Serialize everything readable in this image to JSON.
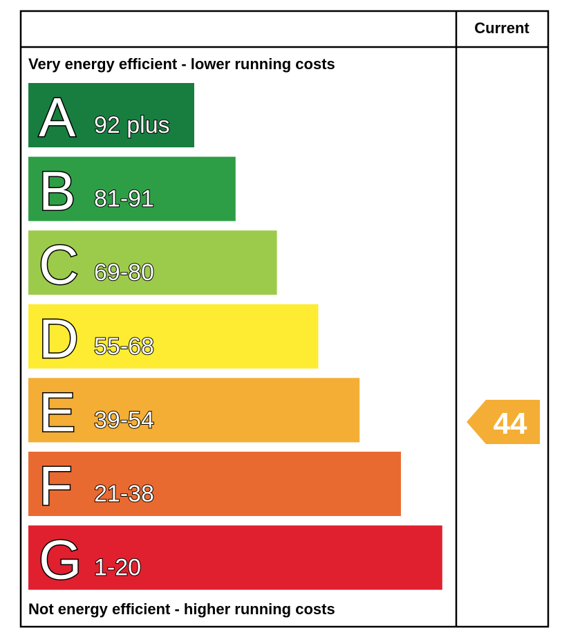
{
  "header": {
    "current": "Current"
  },
  "top_label": "Very energy efficient - lower running costs",
  "bottom_label": "Not energy efficient - higher running costs",
  "bands": [
    {
      "letter": "A",
      "range": "92 plus",
      "color": "#177e3f"
    },
    {
      "letter": "B",
      "range": "81-91",
      "color": "#2e9e46"
    },
    {
      "letter": "C",
      "range": "69-80",
      "color": "#9ccb4b"
    },
    {
      "letter": "D",
      "range": "55-68",
      "color": "#fdec31"
    },
    {
      "letter": "E",
      "range": "39-54",
      "color": "#f4ae35"
    },
    {
      "letter": "F",
      "range": "21-38",
      "color": "#e96a31"
    },
    {
      "letter": "G",
      "range": "1-20",
      "color": "#e0202e"
    }
  ],
  "current": {
    "value": "44",
    "color": "#f4ae35"
  }
}
